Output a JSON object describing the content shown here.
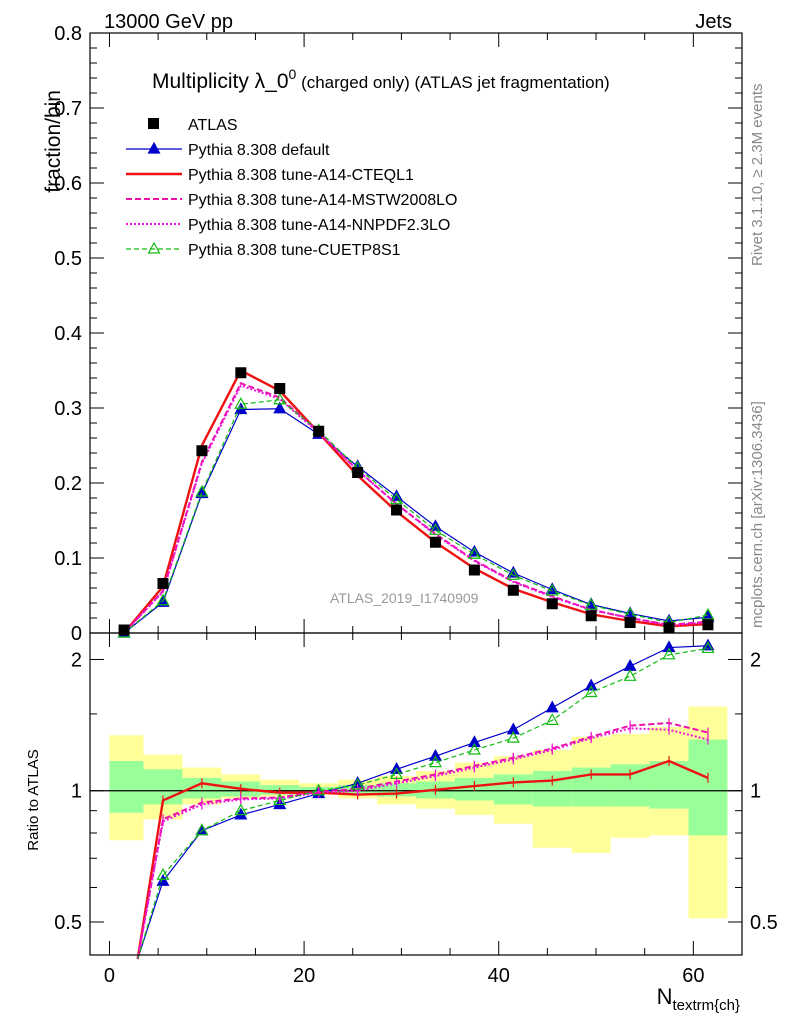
{
  "header": {
    "left": "13000 GeV pp",
    "right": "Jets",
    "title_main": "Multiplicity λ_0",
    "title_sup": "0",
    "title_rest": " (charged only) (ATLAS jet fragmentation)",
    "analysis_id": "ATLAS_2019_I1740909",
    "side_top": "Rivet 3.1.10, ≥ 2.3M events",
    "side_bottom": "mcplots.cern.ch [arXiv:1306.3436]"
  },
  "colors": {
    "atlas": "#000000",
    "default": "#0000cc",
    "cteql1": "#ee1111",
    "mstw": "#ee11aa",
    "nnpdf": "#ee11dd",
    "cuetp8s1": "#11bb11",
    "band_yellow": "#ffff99",
    "band_green": "#99ff99"
  },
  "chart_data": [
    {
      "type": "line",
      "panel": "main",
      "ylabel": "fraction/bin",
      "xlim": [
        -2,
        65
      ],
      "ylim": [
        0,
        0.8
      ],
      "yticks": [
        0,
        0.1,
        0.2,
        0.3,
        0.4,
        0.5,
        0.6,
        0.7,
        0.8
      ],
      "ytick_labels": [
        "0",
        "0.1",
        "0.2",
        "0.3",
        "0.4",
        "0.5",
        "0.6",
        "0.7",
        "0.8"
      ],
      "x": [
        1.5,
        5.5,
        9.5,
        13.5,
        17.5,
        21.5,
        25.5,
        29.5,
        33.5,
        37.5,
        41.5,
        45.5,
        49.5,
        53.5,
        57.5,
        61.5
      ],
      "series": [
        {
          "name": "ATLAS",
          "key": "atlas",
          "style": "square",
          "values": [
            0.004,
            0.066,
            0.243,
            0.347,
            0.326,
            0.269,
            0.214,
            0.164,
            0.121,
            0.084,
            0.057,
            0.039,
            0.023,
            0.014,
            0.007,
            0.011
          ]
        },
        {
          "name": "Pythia 8.308 default",
          "key": "default",
          "style": "solid-tri",
          "values": [
            0.0,
            0.041,
            0.186,
            0.298,
            0.299,
            0.265,
            0.222,
            0.182,
            0.142,
            0.108,
            0.08,
            0.058,
            0.038,
            0.026,
            0.016,
            0.021
          ]
        },
        {
          "name": "Pythia 8.308 tune-A14-CTEQL1",
          "key": "cteql1",
          "style": "solid",
          "values": [
            0.0,
            0.062,
            0.25,
            0.35,
            0.323,
            0.267,
            0.21,
            0.162,
            0.121,
            0.086,
            0.059,
            0.041,
            0.025,
            0.016,
            0.009,
            0.012
          ]
        },
        {
          "name": "Pythia 8.308 tune-A14-MSTW2008LO",
          "key": "mstw",
          "style": "dashed",
          "values": [
            0.0,
            0.056,
            0.228,
            0.333,
            0.314,
            0.268,
            0.217,
            0.172,
            0.132,
            0.097,
            0.069,
            0.049,
            0.031,
            0.02,
            0.011,
            0.015
          ]
        },
        {
          "name": "Pythia 8.308 tune-A14-NNPDF2.3LO",
          "key": "nnpdf",
          "style": "dotted",
          "values": [
            0.0,
            0.055,
            0.226,
            0.33,
            0.312,
            0.267,
            0.217,
            0.172,
            0.131,
            0.096,
            0.068,
            0.048,
            0.031,
            0.02,
            0.01,
            0.014
          ]
        },
        {
          "name": "Pythia 8.308 tune-CUETP8S1",
          "key": "cuetp8s1",
          "style": "dashed-tri",
          "values": [
            0.0,
            0.043,
            0.188,
            0.305,
            0.311,
            0.27,
            0.22,
            0.178,
            0.137,
            0.105,
            0.077,
            0.056,
            0.037,
            0.025,
            0.014,
            0.024
          ]
        }
      ]
    },
    {
      "type": "line",
      "panel": "ratio",
      "ylabel": "Ratio to ATLAS",
      "xlabel": "N",
      "xlabel_sub": "textrm{ch}",
      "xlim": [
        -2,
        65
      ],
      "ylim": [
        0.42,
        2.3
      ],
      "log_y": true,
      "yticks": [
        0.5,
        1,
        2
      ],
      "ytick_labels": [
        "0.5",
        "1",
        "2"
      ],
      "xticks": [
        0,
        20,
        40,
        60
      ],
      "xtick_labels": [
        "0",
        "20",
        "40",
        "60"
      ],
      "bins": [
        [
          0,
          3.5
        ],
        [
          3.5,
          7.5
        ],
        [
          7.5,
          11.5
        ],
        [
          11.5,
          15.5
        ],
        [
          15.5,
          19.5
        ],
        [
          19.5,
          23.5
        ],
        [
          23.5,
          27.5
        ],
        [
          27.5,
          31.5
        ],
        [
          31.5,
          35.5
        ],
        [
          35.5,
          39.5
        ],
        [
          39.5,
          43.5
        ],
        [
          43.5,
          47.5
        ],
        [
          47.5,
          51.5
        ],
        [
          51.5,
          55.5
        ],
        [
          55.5,
          59.5
        ],
        [
          59.5,
          63.5
        ]
      ],
      "band_yellow": [
        [
          0.77,
          1.34
        ],
        [
          0.86,
          1.21
        ],
        [
          0.93,
          1.13
        ],
        [
          0.96,
          1.09
        ],
        [
          0.97,
          1.06
        ],
        [
          0.98,
          1.04
        ],
        [
          0.96,
          1.06
        ],
        [
          0.93,
          1.08
        ],
        [
          0.91,
          1.11
        ],
        [
          0.88,
          1.16
        ],
        [
          0.84,
          1.2
        ],
        [
          0.74,
          1.24
        ],
        [
          0.72,
          1.33
        ],
        [
          0.78,
          1.35
        ],
        [
          0.79,
          1.4
        ],
        [
          0.51,
          1.56
        ]
      ],
      "band_green": [
        [
          0.89,
          1.17
        ],
        [
          0.93,
          1.12
        ],
        [
          0.96,
          1.07
        ],
        [
          0.97,
          1.05
        ],
        [
          0.98,
          1.03
        ],
        [
          0.99,
          1.02
        ],
        [
          0.98,
          1.03
        ],
        [
          0.97,
          1.04
        ],
        [
          0.96,
          1.05
        ],
        [
          0.95,
          1.07
        ],
        [
          0.93,
          1.09
        ],
        [
          0.92,
          1.11
        ],
        [
          0.92,
          1.13
        ],
        [
          0.92,
          1.15
        ],
        [
          0.91,
          1.17
        ],
        [
          0.79,
          1.31
        ]
      ],
      "x": [
        1.5,
        5.5,
        9.5,
        13.5,
        17.5,
        21.5,
        25.5,
        29.5,
        33.5,
        37.5,
        41.5,
        45.5,
        49.5,
        53.5,
        57.5,
        61.5
      ],
      "series": [
        {
          "name": "Pythia 8.308 default",
          "key": "default",
          "style": "solid-tri",
          "values": [
            null,
            0.62,
            0.81,
            0.88,
            0.93,
            0.985,
            1.04,
            1.12,
            1.2,
            1.29,
            1.38,
            1.55,
            1.74,
            1.93,
            2.13,
            2.15
          ]
        },
        {
          "name": "Pythia 8.308 tune-A14-CTEQL1",
          "key": "cteql1",
          "style": "solid",
          "values": [
            null,
            0.95,
            1.04,
            1.01,
            0.99,
            0.99,
            0.98,
            0.985,
            1.005,
            1.025,
            1.045,
            1.055,
            1.09,
            1.09,
            1.17,
            1.07
          ]
        },
        {
          "name": "Pythia 8.308 tune-A14-MSTW2008LO",
          "key": "mstw",
          "style": "dashed",
          "values": [
            null,
            0.86,
            0.94,
            0.96,
            0.965,
            0.995,
            1.01,
            1.05,
            1.09,
            1.14,
            1.19,
            1.25,
            1.33,
            1.41,
            1.43,
            1.36
          ]
        },
        {
          "name": "Pythia 8.308 tune-A14-NNPDF2.3LO",
          "key": "nnpdf",
          "style": "dotted",
          "values": [
            null,
            0.85,
            0.93,
            0.955,
            0.96,
            0.99,
            1.0,
            1.04,
            1.08,
            1.13,
            1.18,
            1.24,
            1.32,
            1.39,
            1.38,
            1.31
          ]
        },
        {
          "name": "Pythia 8.308 tune-CUETP8S1",
          "key": "cuetp8s1",
          "style": "dashed-tri",
          "values": [
            null,
            0.64,
            0.81,
            0.9,
            0.95,
            1.0,
            1.03,
            1.09,
            1.16,
            1.24,
            1.32,
            1.45,
            1.68,
            1.83,
            2.05,
            2.12
          ]
        }
      ]
    }
  ]
}
